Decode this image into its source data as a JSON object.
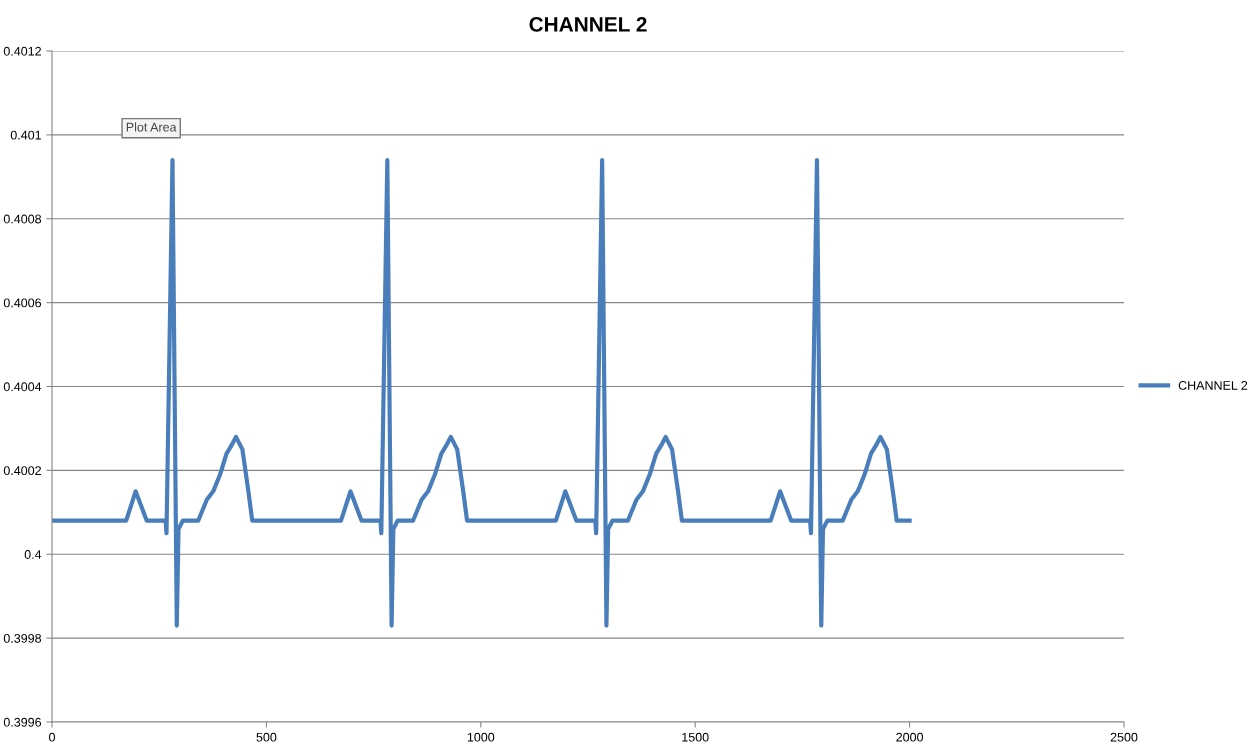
{
  "chart_data": {
    "type": "line",
    "title": "CHANNEL 2",
    "x": [
      0,
      173,
      195,
      221,
      265,
      267,
      281,
      291,
      295,
      305,
      341,
      349,
      361,
      376,
      392,
      407,
      419,
      429,
      444,
      458,
      467,
      674,
      696,
      722,
      766,
      768,
      782,
      792,
      796,
      806,
      842,
      850,
      862,
      877,
      893,
      908,
      920,
      930,
      945,
      959,
      968,
      1175,
      1197,
      1223,
      1267,
      1269,
      1283,
      1293,
      1297,
      1307,
      1343,
      1351,
      1363,
      1378,
      1394,
      1409,
      1421,
      1431,
      1446,
      1460,
      1469,
      1676,
      1698,
      1724,
      1768,
      1770,
      1784,
      1794,
      1798,
      1808,
      1844,
      1852,
      1864,
      1879,
      1895,
      1910,
      1922,
      1932,
      1947,
      1961,
      1970,
      2000
    ],
    "series": [
      {
        "name": "CHANNEL 2",
        "color": "#4a7ebb",
        "values": [
          0.40008,
          0.40008,
          0.40015,
          0.40008,
          0.40008,
          0.40005,
          0.40094,
          0.39983,
          0.40006,
          0.40008,
          0.40008,
          0.4001,
          0.40013,
          0.40015,
          0.40019,
          0.40024,
          0.40026,
          0.40028,
          0.40025,
          0.40015,
          0.40008,
          0.40008,
          0.40015,
          0.40008,
          0.40008,
          0.40005,
          0.40094,
          0.39983,
          0.40006,
          0.40008,
          0.40008,
          0.4001,
          0.40013,
          0.40015,
          0.40019,
          0.40024,
          0.40026,
          0.40028,
          0.40025,
          0.40015,
          0.40008,
          0.40008,
          0.40015,
          0.40008,
          0.40008,
          0.40005,
          0.40094,
          0.39983,
          0.40006,
          0.40008,
          0.40008,
          0.4001,
          0.40013,
          0.40015,
          0.40019,
          0.40024,
          0.40026,
          0.40028,
          0.40025,
          0.40015,
          0.40008,
          0.40008,
          0.40015,
          0.40008,
          0.40008,
          0.40005,
          0.40094,
          0.39983,
          0.40006,
          0.40008,
          0.40008,
          0.4001,
          0.40013,
          0.40015,
          0.40019,
          0.40024,
          0.40026,
          0.40028,
          0.40025,
          0.40015,
          0.40008,
          0.40008
        ]
      }
    ],
    "xlim": [
      0,
      2500
    ],
    "xticks": [
      0,
      500,
      1000,
      1500,
      2000,
      2500
    ],
    "ylim": [
      0.3996,
      0.4012
    ],
    "yticks": [
      0.3996,
      0.3998,
      0.4,
      0.4002,
      0.4004,
      0.4006,
      0.4008,
      0.401,
      0.4012
    ],
    "grid": "y",
    "legend": "right",
    "marker": "none",
    "line_style": "solid",
    "annotations": [
      "Plot Area"
    ]
  }
}
